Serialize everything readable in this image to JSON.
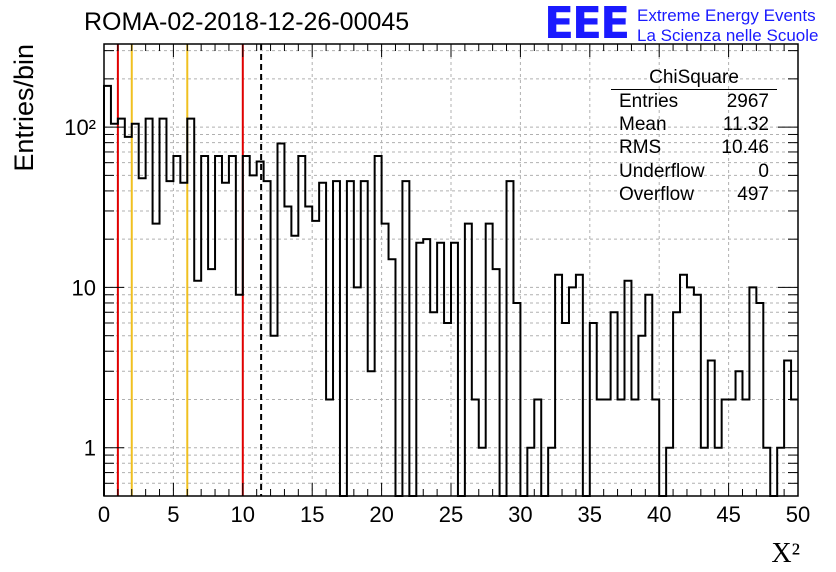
{
  "header": {
    "title": "ROMA-02-2018-12-26-00045",
    "logo_text": "EEE",
    "logo_line1": "Extreme Energy Events",
    "logo_line2": "La Scienza nelle Scuole"
  },
  "stats_box": {
    "name": "ChiSquare",
    "rows": [
      {
        "label": "Entries",
        "value": "2967"
      },
      {
        "label": "Mean",
        "value": "11.32"
      },
      {
        "label": "RMS",
        "value": "10.46"
      },
      {
        "label": "Underflow",
        "value": "0"
      },
      {
        "label": "Overflow",
        "value": "497"
      }
    ]
  },
  "colors": {
    "histogram": "#000000",
    "red_line": "#e00000",
    "yellow_line": "#f0c020",
    "grid": "#b0b0b0",
    "logo": "#1a1aff"
  },
  "chart_data": {
    "type": "histogram",
    "ylabel": "Entries/bin",
    "xlabel": "X²",
    "log_y": true,
    "grid": true,
    "xlim": [
      0,
      50
    ],
    "ylim": [
      0.5,
      330
    ],
    "bin_width": 0.5,
    "x_ticks": [
      0,
      5,
      10,
      15,
      20,
      25,
      30,
      35,
      40,
      45,
      50
    ],
    "x_tick_labels": [
      "0",
      "5",
      "10",
      "15",
      "20",
      "25",
      "30",
      "35",
      "40",
      "45",
      "50"
    ],
    "y_ticks": [
      1,
      10,
      100
    ],
    "y_tick_labels": [
      "1",
      "10",
      "10²"
    ],
    "values": [
      181,
      105,
      113,
      87,
      105,
      48,
      113,
      25,
      113,
      46,
      66,
      45,
      113,
      11,
      66,
      13,
      66,
      45,
      66,
      9,
      66,
      50,
      61,
      46,
      5,
      79,
      32,
      21,
      66,
      32,
      26,
      45,
      2,
      46,
      0,
      46,
      10,
      46,
      3,
      66,
      25,
      15,
      0.5,
      46,
      0.5,
      19,
      20,
      7,
      19,
      6,
      19,
      0.5,
      25,
      2,
      1,
      25,
      13,
      0.5,
      46,
      8,
      0.5,
      1,
      2,
      0.5,
      1,
      12,
      6,
      10,
      12,
      0.5,
      6,
      2,
      2,
      7,
      2,
      11,
      2,
      5,
      9,
      2,
      0.5,
      1,
      7,
      12,
      10,
      9,
      1,
      3.5,
      1,
      2,
      2,
      3,
      2,
      10,
      8,
      1,
      0.5,
      1,
      3.5,
      2
    ],
    "vertical_lines": [
      {
        "x": 1,
        "color": "red",
        "style": "solid"
      },
      {
        "x": 2,
        "color": "yellow",
        "style": "solid"
      },
      {
        "x": 6,
        "color": "yellow",
        "style": "solid"
      },
      {
        "x": 10,
        "color": "red",
        "style": "solid"
      },
      {
        "x": 11.32,
        "color": "black",
        "style": "dashed"
      }
    ]
  }
}
